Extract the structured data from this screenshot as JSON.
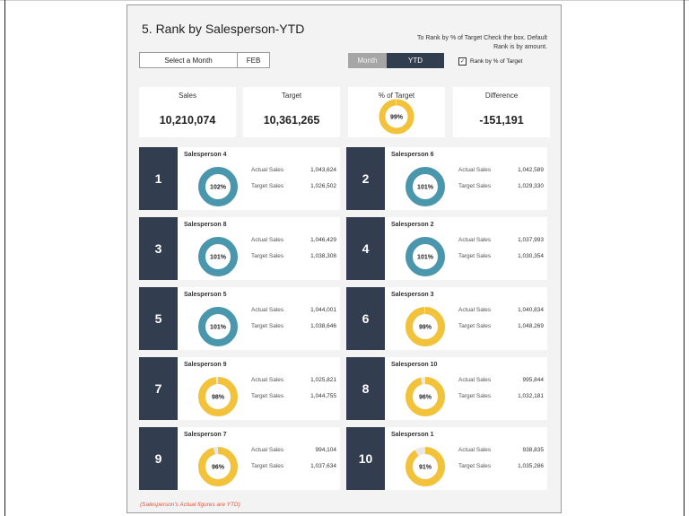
{
  "title": "5. Rank by Salesperson-YTD",
  "note": "To Rank by % of Target Check the box. Default Rank is by amount.",
  "month_select": {
    "label": "Select a Month",
    "value": "FEB"
  },
  "toggle": {
    "month": "Month",
    "ytd": "YTD",
    "active": "YTD"
  },
  "rank_checkbox": {
    "label": "Rank by % of Target",
    "checked": true,
    "mark": "✓"
  },
  "kpis": {
    "sales": {
      "label": "Sales",
      "value": "10,210,074"
    },
    "target": {
      "label": "Target",
      "value": "10,361,265"
    },
    "pct": {
      "label": "% of Target",
      "value": "99%",
      "fraction": 0.99
    },
    "difference": {
      "label": "Difference",
      "value": "-151,191"
    }
  },
  "labels": {
    "actual": "Actual Sales",
    "target": "Target Sales"
  },
  "colors": {
    "above_target": "#4a97ad",
    "below_target": "#f2c23a",
    "track": "#e8e8e8",
    "rank_bg": "#323d4f"
  },
  "cards": [
    {
      "rank": "1",
      "name": "Salesperson 4",
      "pct": "102%",
      "fraction": 1.02,
      "actual": "1,043,624",
      "target": "1,026,502"
    },
    {
      "rank": "2",
      "name": "Salesperson 6",
      "pct": "101%",
      "fraction": 1.01,
      "actual": "1,042,589",
      "target": "1,029,330"
    },
    {
      "rank": "3",
      "name": "Salesperson 8",
      "pct": "101%",
      "fraction": 1.01,
      "actual": "1,046,429",
      "target": "1,038,308"
    },
    {
      "rank": "4",
      "name": "Salesperson 2",
      "pct": "101%",
      "fraction": 1.01,
      "actual": "1,037,993",
      "target": "1,030,354"
    },
    {
      "rank": "5",
      "name": "Salesperson 5",
      "pct": "101%",
      "fraction": 1.01,
      "actual": "1,044,001",
      "target": "1,038,646"
    },
    {
      "rank": "6",
      "name": "Salesperson 3",
      "pct": "99%",
      "fraction": 0.99,
      "actual": "1,040,834",
      "target": "1,048,269"
    },
    {
      "rank": "7",
      "name": "Salesperson 9",
      "pct": "98%",
      "fraction": 0.98,
      "actual": "1,025,821",
      "target": "1,044,755"
    },
    {
      "rank": "8",
      "name": "Salesperson 10",
      "pct": "96%",
      "fraction": 0.96,
      "actual": "995,844",
      "target": "1,032,181"
    },
    {
      "rank": "9",
      "name": "Salesperson 7",
      "pct": "96%",
      "fraction": 0.96,
      "actual": "994,104",
      "target": "1,037,634"
    },
    {
      "rank": "10",
      "name": "Salesperson 1",
      "pct": "91%",
      "fraction": 0.91,
      "actual": "938,835",
      "target": "1,035,286"
    }
  ],
  "footnote": "(Salesperson's Actual figures are YTD)"
}
